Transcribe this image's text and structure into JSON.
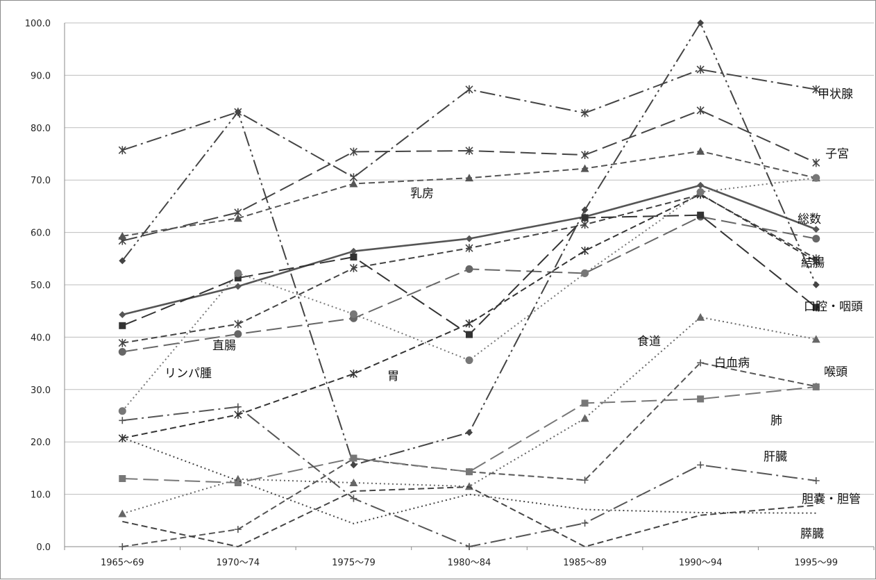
{
  "chart_data": {
    "type": "line",
    "title": "",
    "xlabel": "",
    "ylabel": "",
    "grid": true,
    "legend": "none",
    "categories": [
      "1965〜69",
      "1970〜74",
      "1975〜79",
      "1980〜84",
      "1985〜89",
      "1990〜94",
      "1995〜99"
    ],
    "ylim": [
      0,
      100
    ],
    "y_ticks": [
      "0.0",
      "10.0",
      "20.0",
      "30.0",
      "40.0",
      "50.0",
      "60.0",
      "70.0",
      "80.0",
      "90.0",
      "100.0"
    ],
    "series": [
      {
        "name": "総数",
        "values": [
          44.3,
          49.7,
          56.4,
          58.8,
          63.0,
          69.0,
          60.6
        ],
        "color": "#555555",
        "marker": "diamond",
        "dash": "solid",
        "width": 2.6
      },
      {
        "name": "甲状腺",
        "values": [
          75.7,
          83.0,
          70.5,
          87.3,
          82.8,
          91.1,
          87.3
        ],
        "color": "#444444",
        "marker": "star",
        "dash": "dashdot",
        "width": 2
      },
      {
        "name": "子宮",
        "values": [
          58.4,
          63.8,
          75.4,
          75.6,
          74.8,
          83.3,
          73.3
        ],
        "color": "#444444",
        "marker": "star",
        "dash": "longdash",
        "width": 2
      },
      {
        "name": "乳房",
        "values": [
          59.3,
          62.7,
          69.3,
          70.4,
          72.2,
          75.5,
          70.4
        ],
        "color": "#555555",
        "marker": "triangle",
        "dash": "dash",
        "width": 2
      },
      {
        "name": "結腸",
        "values": [
          38.9,
          42.5,
          53.2,
          57.0,
          61.5,
          67.2,
          55.0
        ],
        "color": "#444444",
        "marker": "star",
        "dash": "dash",
        "width": 2
      },
      {
        "name": "直腸",
        "values": [
          37.2,
          40.6,
          43.6,
          53.0,
          52.2,
          63.0,
          58.8
        ],
        "color": "#666666",
        "marker": "circle",
        "dash": "longdash",
        "width": 2
      },
      {
        "name": "口腔・咽頭",
        "values": [
          42.2,
          51.3,
          55.3,
          40.5,
          62.8,
          63.3,
          45.7
        ],
        "color": "#333333",
        "marker": "square",
        "dash": "longdash",
        "width": 2
      },
      {
        "name": "胃",
        "values": [
          20.7,
          25.2,
          33.0,
          42.6,
          56.5,
          67.3,
          54.5
        ],
        "color": "#333333",
        "marker": "star",
        "dash": "dash",
        "width": 2
      },
      {
        "name": "リンパ腫",
        "values": [
          25.9,
          52.2,
          44.4,
          35.6,
          52.2,
          67.7,
          70.4
        ],
        "color": "#777777",
        "marker": "circle",
        "dash": "dot",
        "width": 2
      },
      {
        "name": "食道",
        "values": [
          54.6,
          83.0,
          15.6,
          21.8,
          64.3,
          100.0,
          50.0
        ],
        "color": "#444444",
        "marker": "diamond",
        "dash": "dashdotdot",
        "width": 2
      },
      {
        "name": "喉頭",
        "values": [
          6.3,
          12.9,
          12.2,
          11.5,
          24.5,
          43.8,
          39.6
        ],
        "color": "#666666",
        "marker": "triangle",
        "dash": "dot",
        "width": 2
      },
      {
        "name": "白血病",
        "values": [
          0.0,
          3.3,
          16.8,
          14.3,
          12.7,
          35.1,
          30.6
        ],
        "color": "#555555",
        "marker": "plus",
        "dash": "dash",
        "width": 2
      },
      {
        "name": "肺",
        "values": [
          13.0,
          12.2,
          16.9,
          14.3,
          27.4,
          28.2,
          30.5
        ],
        "color": "#777777",
        "marker": "square",
        "dash": "longdash",
        "width": 2
      },
      {
        "name": "肝臓",
        "values": [
          24.1,
          26.7,
          9.2,
          0.0,
          4.5,
          15.6,
          12.6
        ],
        "color": "#555555",
        "marker": "plus",
        "dash": "dashdot",
        "width": 2
      },
      {
        "name": "胆嚢・胆管",
        "values": [
          20.8,
          12.6,
          4.4,
          10.0,
          7.1,
          6.5,
          6.4
        ],
        "color": "#444444",
        "marker": "none",
        "dash": "dot",
        "width": 2
      },
      {
        "name": "膵臓",
        "values": [
          4.8,
          0.0,
          10.6,
          11.4,
          0.0,
          6.0,
          7.9
        ],
        "color": "#444444",
        "marker": "none",
        "dash": "dash",
        "width": 2
      }
    ]
  }
}
